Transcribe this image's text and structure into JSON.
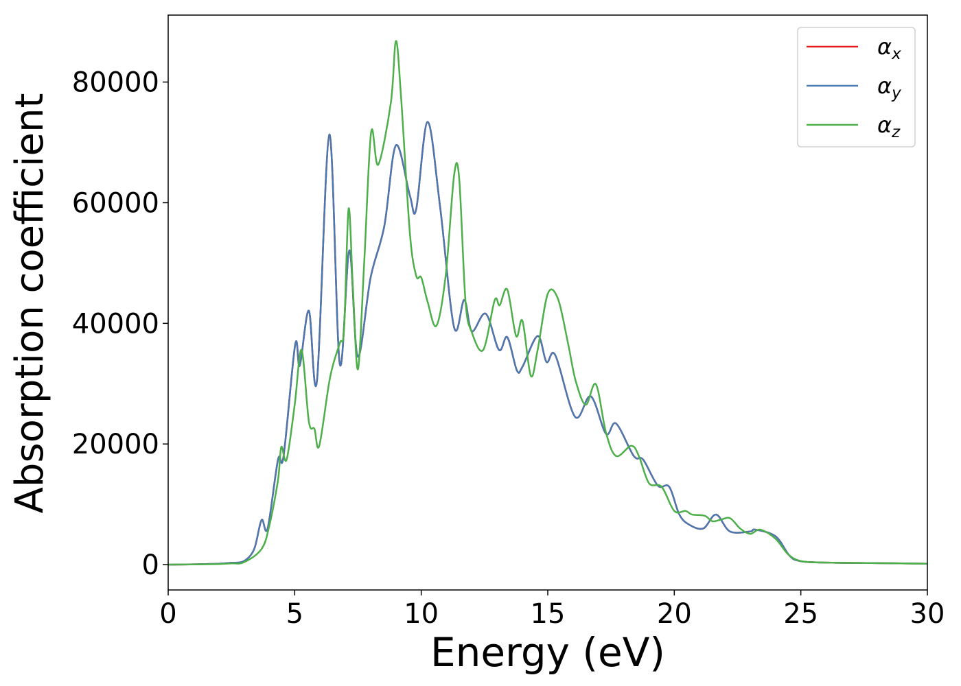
{
  "chart_data": {
    "type": "line",
    "xlabel": "Energy (eV)",
    "ylabel": "Absorption coefficient",
    "xlim": [
      0,
      30
    ],
    "xticks": [
      0,
      5,
      10,
      15,
      20,
      25,
      30
    ],
    "ylim": [
      -4200,
      91100
    ],
    "yticks": [
      0,
      20000,
      40000,
      60000,
      80000
    ],
    "legend": "upper right",
    "series": [
      {
        "name": "αx",
        "color": "#e41a1c",
        "x": [
          0,
          1,
          2,
          2.5,
          3,
          3.4,
          3.69,
          3.93,
          4.34,
          4.56,
          5.02,
          5.2,
          5.56,
          5.88,
          6.37,
          6.78,
          7.16,
          7.49,
          8.0,
          8.54,
          9.0,
          9.55,
          9.8,
          10.25,
          10.74,
          11.3,
          11.7,
          12.0,
          12.55,
          13.07,
          13.4,
          13.78,
          14.0,
          14.6,
          14.95,
          15.3,
          16.08,
          16.7,
          17.3,
          17.7,
          18.4,
          18.77,
          19.35,
          19.8,
          20.2,
          20.6,
          21.15,
          21.65,
          22.2,
          23.0,
          23.2,
          24.0,
          24.55,
          24.95,
          25.9,
          28,
          30
        ],
        "values": [
          0,
          50,
          150,
          300,
          600,
          2600,
          7400,
          6000,
          17400,
          18000,
          36500,
          33000,
          42100,
          30500,
          71300,
          33300,
          52100,
          34500,
          47600,
          56100,
          69500,
          61200,
          58900,
          73400,
          59500,
          39300,
          43900,
          38700,
          41600,
          35600,
          37700,
          32200,
          32800,
          37900,
          33600,
          34700,
          24500,
          27900,
          21700,
          23400,
          18000,
          17400,
          13100,
          12900,
          8300,
          6600,
          6000,
          8300,
          5500,
          5500,
          5800,
          4700,
          1500,
          600,
          350,
          250,
          150
        ]
      },
      {
        "name": "αy",
        "color": "#4a78b0",
        "x": [
          0,
          1,
          2,
          2.5,
          3,
          3.4,
          3.69,
          3.93,
          4.34,
          4.56,
          5.02,
          5.2,
          5.56,
          5.88,
          6.37,
          6.78,
          7.16,
          7.49,
          8.0,
          8.54,
          9.0,
          9.55,
          9.8,
          10.25,
          10.74,
          11.3,
          11.7,
          12.0,
          12.55,
          13.07,
          13.4,
          13.78,
          14.0,
          14.6,
          14.95,
          15.3,
          16.08,
          16.7,
          17.3,
          17.7,
          18.4,
          18.77,
          19.35,
          19.8,
          20.2,
          20.6,
          21.15,
          21.65,
          22.2,
          23.0,
          23.2,
          24.0,
          24.55,
          24.95,
          25.9,
          28,
          30
        ],
        "values": [
          0,
          50,
          150,
          300,
          600,
          2600,
          7400,
          6000,
          17400,
          18000,
          36500,
          33000,
          42100,
          30500,
          71300,
          33300,
          52100,
          34500,
          47600,
          56100,
          69500,
          61200,
          58900,
          73400,
          59500,
          39300,
          43900,
          38700,
          41600,
          35600,
          37700,
          32200,
          32800,
          37900,
          33600,
          34700,
          24500,
          27900,
          21700,
          23400,
          18000,
          17400,
          13100,
          12900,
          8300,
          6600,
          6000,
          8300,
          5500,
          5500,
          5800,
          4700,
          1500,
          600,
          350,
          250,
          150
        ]
      },
      {
        "name": "αz",
        "color": "#4daf4a",
        "x": [
          0,
          1,
          2,
          2.5,
          3,
          3.69,
          4.0,
          4.34,
          4.47,
          4.68,
          5.0,
          5.27,
          5.56,
          5.78,
          5.97,
          6.4,
          6.78,
          6.95,
          7.13,
          7.3,
          7.5,
          7.75,
          8.02,
          8.3,
          8.8,
          9.0,
          9.2,
          9.55,
          9.8,
          10.0,
          10.25,
          10.6,
          10.97,
          11.3,
          11.5,
          11.75,
          12.0,
          12.45,
          12.9,
          13.1,
          13.4,
          13.75,
          14.0,
          14.33,
          14.6,
          15.0,
          15.4,
          15.8,
          16.1,
          16.5,
          16.9,
          17.3,
          17.7,
          18.3,
          18.6,
          19.0,
          19.5,
          20.0,
          20.45,
          20.7,
          21.2,
          21.5,
          21.8,
          22.2,
          22.6,
          23.0,
          23.4,
          24.0,
          24.5,
          25.0,
          25.9,
          28,
          30
        ],
        "values": [
          0,
          30,
          100,
          200,
          400,
          2600,
          6500,
          14000,
          19500,
          17400,
          26500,
          35600,
          23700,
          22500,
          19700,
          31100,
          36700,
          39000,
          59000,
          45900,
          32400,
          50400,
          71700,
          66300,
          76600,
          86800,
          77700,
          55000,
          47900,
          47600,
          43600,
          39600,
          48100,
          64600,
          64000,
          43600,
          38500,
          35600,
          43800,
          43000,
          45600,
          37900,
          40400,
          31300,
          35600,
          44900,
          44100,
          36700,
          30500,
          26500,
          29900,
          21900,
          18000,
          19700,
          18000,
          13500,
          12900,
          8900,
          8900,
          8300,
          8100,
          7200,
          7400,
          7700,
          6000,
          5100,
          5800,
          4300,
          1700,
          600,
          350,
          250,
          150
        ]
      }
    ]
  }
}
